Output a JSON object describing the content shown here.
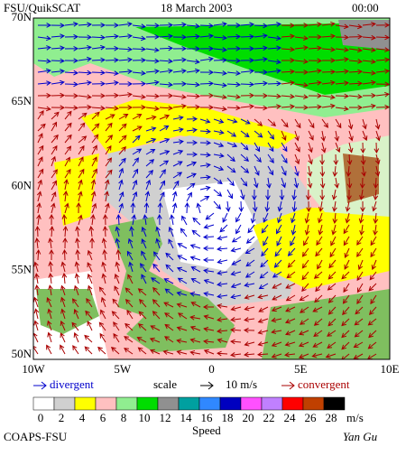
{
  "header": {
    "source": "FSU/QuikSCAT",
    "date": "18 March 2003",
    "time": "00:00"
  },
  "map": {
    "lat_labels": [
      "70N",
      "65N",
      "60N",
      "55N",
      "50N"
    ],
    "lon_labels": [
      "10W",
      "5W",
      "0",
      "5E",
      "10E"
    ]
  },
  "legend": {
    "divergent": "divergent",
    "scale": "scale",
    "scale_value": "10 m/s",
    "convergent": "convergent",
    "divergent_color": "#0000cc",
    "convergent_color": "#aa0000"
  },
  "colorbar": {
    "labels": [
      "0",
      "2",
      "4",
      "6",
      "8",
      "10",
      "12",
      "14",
      "16",
      "18",
      "20",
      "22",
      "24",
      "26",
      "28"
    ],
    "colors": [
      "#ffffff",
      "#d0d0d0",
      "#ffff00",
      "#ffc0c0",
      "#90ee90",
      "#00dd00",
      "#909090",
      "#00a0a0",
      "#3088ff",
      "#0000c0",
      "#ff50ff",
      "#c080ff",
      "#ff0000",
      "#c04000",
      "#000000"
    ],
    "unit": "m/s",
    "title": "Speed"
  },
  "footer": {
    "credit": "COAPS-FSU",
    "signature": "Yan Gu"
  }
}
